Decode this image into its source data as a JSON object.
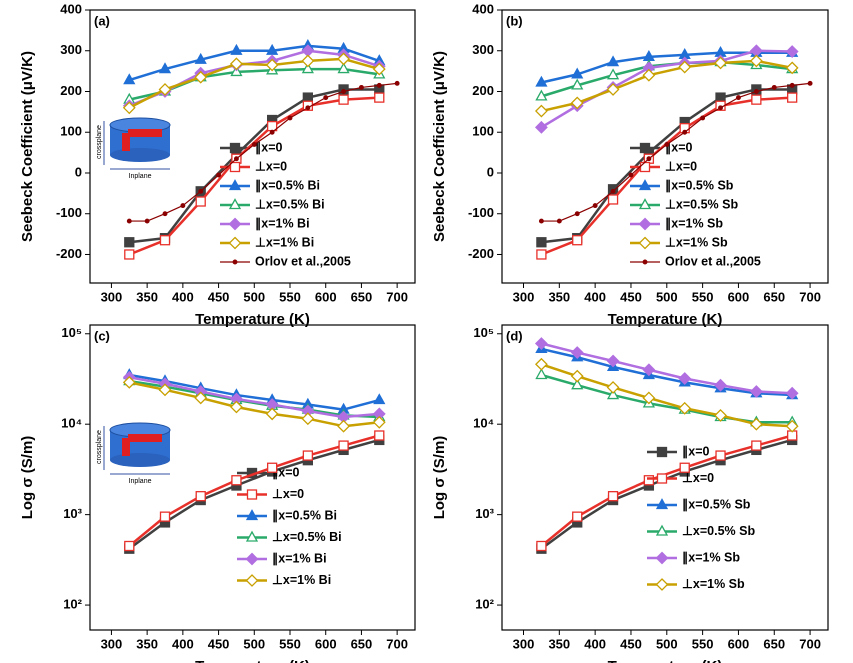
{
  "chart_data": [
    {
      "type": "line",
      "label": "(a)",
      "xlabel": "Temperature (K)",
      "ylabel": "Seebeck Coefficient (μV/K)",
      "x": [
        325,
        375,
        425,
        475,
        525,
        575,
        625,
        675
      ],
      "xlim": [
        270,
        725
      ],
      "xticks": [
        300,
        350,
        400,
        450,
        500,
        550,
        600,
        650,
        700
      ],
      "ylim": [
        -270,
        400
      ],
      "yticks": [
        -200,
        -100,
        0,
        100,
        200,
        300,
        400
      ],
      "log_y": false,
      "inset": {
        "vertical_label": "crossplane",
        "horizontal_label": "Inplane"
      },
      "series": [
        {
          "name": "∥x=0",
          "color": "#404040",
          "marker": "square",
          "filled": true,
          "values": [
            -170,
            -160,
            -45,
            45,
            130,
            185,
            205,
            205
          ]
        },
        {
          "name": "⊥x=0",
          "color": "#e8302a",
          "marker": "square",
          "filled": false,
          "values": [
            -200,
            -165,
            -70,
            35,
            115,
            165,
            180,
            185
          ]
        },
        {
          "name": "∥x=0.5% Bi",
          "color": "#1f6fd6",
          "marker": "triangle",
          "filled": true,
          "values": [
            228,
            255,
            278,
            300,
            300,
            312,
            305,
            275
          ]
        },
        {
          "name": "⊥x=0.5% Bi",
          "color": "#2aaa6a",
          "marker": "triangle",
          "filled": false,
          "values": [
            180,
            200,
            235,
            248,
            252,
            255,
            255,
            242
          ]
        },
        {
          "name": "∥x=1% Bi",
          "color": "#b06ee0",
          "marker": "diamond",
          "filled": true,
          "values": [
            165,
            200,
            245,
            265,
            275,
            300,
            290,
            262
          ]
        },
        {
          "name": "⊥x=1% Bi",
          "color": "#c8a000",
          "marker": "diamond",
          "filled": false,
          "values": [
            160,
            205,
            235,
            268,
            265,
            275,
            280,
            255
          ]
        },
        {
          "name": "Orlov et al.,2005",
          "color": "#8b0000",
          "marker": "dot",
          "filled": true,
          "x": [
            325,
            350,
            375,
            400,
            425,
            450,
            475,
            500,
            525,
            550,
            575,
            600,
            625,
            650,
            675,
            700
          ],
          "values": [
            -118,
            -118,
            -100,
            -80,
            -45,
            -5,
            35,
            70,
            100,
            135,
            160,
            185,
            200,
            210,
            215,
            220
          ]
        }
      ]
    },
    {
      "type": "line",
      "label": "(b)",
      "xlabel": "Temperature (K)",
      "ylabel": "Seebeck Coefficient (μV/K)",
      "x": [
        325,
        375,
        425,
        475,
        525,
        575,
        625,
        675
      ],
      "xlim": [
        270,
        725
      ],
      "xticks": [
        300,
        350,
        400,
        450,
        500,
        550,
        600,
        650,
        700
      ],
      "ylim": [
        -270,
        400
      ],
      "yticks": [
        -200,
        -100,
        0,
        100,
        200,
        300,
        400
      ],
      "log_y": false,
      "series": [
        {
          "name": "∥x=0",
          "color": "#404040",
          "marker": "square",
          "filled": true,
          "values": [
            -170,
            -160,
            -40,
            50,
            125,
            185,
            205,
            205
          ]
        },
        {
          "name": "⊥x=0",
          "color": "#e8302a",
          "marker": "square",
          "filled": false,
          "values": [
            -200,
            -165,
            -65,
            35,
            110,
            165,
            180,
            185
          ]
        },
        {
          "name": "∥x=0.5% Sb",
          "color": "#1f6fd6",
          "marker": "triangle",
          "filled": true,
          "values": [
            222,
            242,
            272,
            285,
            290,
            295,
            295,
            295
          ]
        },
        {
          "name": "⊥x=0.5% Sb",
          "color": "#2aaa6a",
          "marker": "triangle",
          "filled": false,
          "values": [
            188,
            215,
            240,
            262,
            270,
            272,
            265,
            255
          ]
        },
        {
          "name": "∥x=1% Sb",
          "color": "#b06ee0",
          "marker": "diamond",
          "filled": true,
          "values": [
            112,
            165,
            210,
            258,
            270,
            275,
            300,
            298
          ]
        },
        {
          "name": "⊥x=1% Sb",
          "color": "#c8a000",
          "marker": "diamond",
          "filled": false,
          "values": [
            152,
            172,
            205,
            240,
            260,
            270,
            275,
            258
          ]
        },
        {
          "name": "Orlov et al.,2005",
          "color": "#8b0000",
          "marker": "dot",
          "filled": true,
          "x": [
            325,
            350,
            375,
            400,
            425,
            450,
            475,
            500,
            525,
            550,
            575,
            600,
            625,
            650,
            675,
            700
          ],
          "values": [
            -118,
            -118,
            -100,
            -80,
            -45,
            -5,
            35,
            70,
            100,
            135,
            160,
            185,
            200,
            210,
            215,
            220
          ]
        }
      ]
    },
    {
      "type": "line",
      "label": "(c)",
      "xlabel": "Temperature (K)",
      "ylabel": "Log σ (S/m)",
      "x": [
        325,
        375,
        425,
        475,
        525,
        575,
        625,
        675
      ],
      "xlim": [
        270,
        725
      ],
      "xticks": [
        300,
        350,
        400,
        450,
        500,
        550,
        600,
        650,
        700
      ],
      "ylim": [
        53,
        125000
      ],
      "log_y": true,
      "yticks": [
        {
          "value": 100,
          "label": "10²"
        },
        {
          "value": 1000,
          "label": "10³"
        },
        {
          "value": 10000,
          "label": "10⁴"
        },
        {
          "value": 100000,
          "label": "10⁵"
        }
      ],
      "inset": {
        "vertical_label": "crossplane",
        "horizontal_label": "Inplane"
      },
      "series": [
        {
          "name": "∥x=0",
          "color": "#404040",
          "marker": "square",
          "filled": true,
          "values": [
            420,
            820,
            1450,
            2100,
            3000,
            4000,
            5200,
            6700
          ]
        },
        {
          "name": "⊥x=0",
          "color": "#e8302a",
          "marker": "square",
          "filled": false,
          "values": [
            450,
            950,
            1600,
            2400,
            3300,
            4500,
            5800,
            7500
          ]
        },
        {
          "name": "∥x=0.5% Bi",
          "color": "#1f6fd6",
          "marker": "triangle",
          "filled": true,
          "values": [
            35000,
            30000,
            25000,
            21000,
            18500,
            16500,
            14500,
            18500
          ]
        },
        {
          "name": "⊥x=0.5% Bi",
          "color": "#2aaa6a",
          "marker": "triangle",
          "filled": false,
          "values": [
            30000,
            26000,
            22000,
            18500,
            16000,
            14500,
            12500,
            12000
          ]
        },
        {
          "name": "∥x=1% Bi",
          "color": "#b06ee0",
          "marker": "diamond",
          "filled": true,
          "values": [
            33000,
            28000,
            23000,
            19000,
            16500,
            14000,
            12000,
            13000
          ]
        },
        {
          "name": "⊥x=1% Bi",
          "color": "#c8a000",
          "marker": "diamond",
          "filled": false,
          "values": [
            29000,
            24000,
            19500,
            15500,
            13000,
            11500,
            9500,
            10500
          ]
        }
      ]
    },
    {
      "type": "line",
      "label": "(d)",
      "xlabel": "Temperature (K)",
      "ylabel": "Log σ (S/m)",
      "x": [
        325,
        375,
        425,
        475,
        525,
        575,
        625,
        675
      ],
      "xlim": [
        270,
        725
      ],
      "xticks": [
        300,
        350,
        400,
        450,
        500,
        550,
        600,
        650,
        700
      ],
      "ylim": [
        53,
        125000
      ],
      "log_y": true,
      "yticks": [
        {
          "value": 100,
          "label": "10²"
        },
        {
          "value": 1000,
          "label": "10³"
        },
        {
          "value": 10000,
          "label": "10⁴"
        },
        {
          "value": 100000,
          "label": "10⁵"
        }
      ],
      "series": [
        {
          "name": "∥x=0",
          "color": "#404040",
          "marker": "square",
          "filled": true,
          "values": [
            420,
            820,
            1450,
            2100,
            3000,
            4000,
            5200,
            6700
          ]
        },
        {
          "name": "⊥x=0",
          "color": "#e8302a",
          "marker": "square",
          "filled": false,
          "values": [
            450,
            950,
            1600,
            2400,
            3300,
            4500,
            5800,
            7500
          ]
        },
        {
          "name": "∥x=0.5% Sb",
          "color": "#1f6fd6",
          "marker": "triangle",
          "filled": true,
          "values": [
            68000,
            55000,
            43000,
            35000,
            29000,
            25000,
            22000,
            21000
          ]
        },
        {
          "name": "⊥x=0.5% Sb",
          "color": "#2aaa6a",
          "marker": "triangle",
          "filled": false,
          "values": [
            35000,
            27000,
            21000,
            17000,
            14500,
            12000,
            10500,
            10500
          ]
        },
        {
          "name": "∥x=1% Sb",
          "color": "#b06ee0",
          "marker": "diamond",
          "filled": true,
          "values": [
            78000,
            62000,
            50000,
            40000,
            32000,
            27000,
            23000,
            22000
          ]
        },
        {
          "name": "⊥x=1% Sb",
          "color": "#c8a000",
          "marker": "diamond",
          "filled": false,
          "values": [
            46000,
            34000,
            25500,
            19500,
            15000,
            12500,
            10000,
            9500
          ]
        }
      ]
    }
  ]
}
